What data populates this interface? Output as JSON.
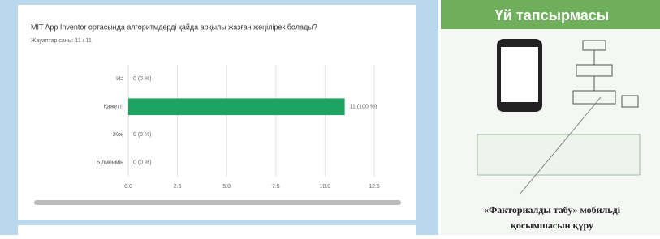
{
  "chart_data": {
    "type": "hbar",
    "title": "MIT App Inventor ортасында алгоритмдерді қайда арқылы жазған жеңілірек болады?",
    "subtitle": "Жауаптар саны: 11 / 11",
    "categories": [
      "Иә",
      "Қажетті",
      "Жоқ",
      "Білмеймін"
    ],
    "values": [
      0,
      11,
      0,
      0
    ],
    "value_labels": [
      "0 (0 %)",
      "11 (100 %)",
      "0 (0 %)",
      "0 (0 %)"
    ],
    "color": "#1ea362",
    "xlim": [
      0,
      12.5
    ],
    "xticks": [
      {
        "value": 0,
        "label": "0.0"
      },
      2.5,
      {
        "value": 5,
        "label": "5.0"
      },
      7.5,
      {
        "value": 10,
        "label": "10.0"
      },
      12.5
    ],
    "grid": true
  },
  "slide": {
    "title": "Үй тапсырмасы",
    "caption_line1": "«Факториалды табу» мобильді",
    "caption_line2": "қосымшасын құру"
  }
}
